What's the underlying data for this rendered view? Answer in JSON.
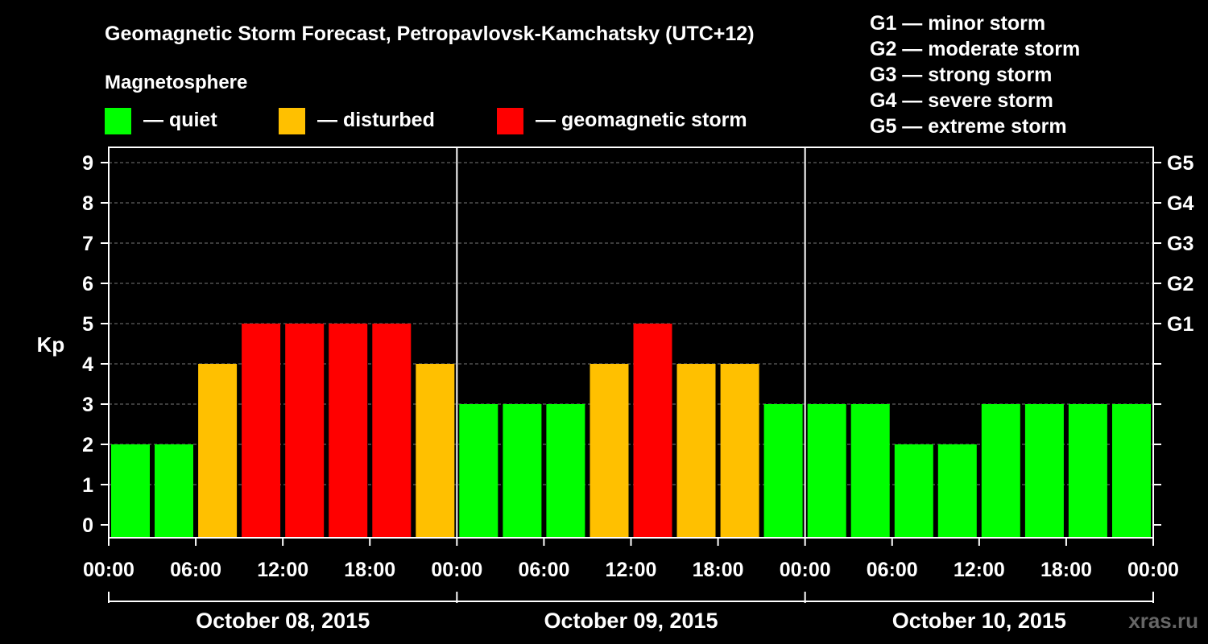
{
  "chart_data": {
    "type": "bar",
    "title": "Geomagnetic Storm Forecast, Petropavlovsk-Kamchatsky (UTC+12)",
    "legend_title": "Magnetosphere",
    "legend": [
      {
        "label": "— quiet",
        "color": "#00ff00"
      },
      {
        "label": "— disturbed",
        "color": "#ffc000"
      },
      {
        "label": "— geomagnetic storm",
        "color": "#ff0000"
      }
    ],
    "g_scale": [
      {
        "level": "G1",
        "label": "G1 — minor storm",
        "kp": 5
      },
      {
        "level": "G2",
        "label": "G2 — moderate storm",
        "kp": 6
      },
      {
        "level": "G3",
        "label": "G3 — strong storm",
        "kp": 7
      },
      {
        "level": "G4",
        "label": "G4 — severe storm",
        "kp": 8
      },
      {
        "level": "G5",
        "label": "G5 — extreme storm",
        "kp": 9
      }
    ],
    "ylabel": "Kp",
    "ylim": [
      0,
      9
    ],
    "yticks": [
      "0",
      "1",
      "2",
      "3",
      "4",
      "5",
      "6",
      "7",
      "8",
      "9"
    ],
    "grid": true,
    "days": [
      "October 08, 2015",
      "October 09, 2015",
      "October 10, 2015"
    ],
    "xtick_labels": [
      "00:00",
      "06:00",
      "12:00",
      "18:00",
      "00:00",
      "06:00",
      "12:00",
      "18:00",
      "00:00",
      "06:00",
      "12:00",
      "18:00",
      "00:00"
    ],
    "interval_hours": 3,
    "values": [
      2,
      2,
      4,
      5,
      5,
      5,
      5,
      4,
      3,
      3,
      3,
      4,
      5,
      4,
      4,
      3,
      3,
      3,
      2,
      2,
      3,
      3,
      3,
      3
    ],
    "colors": {
      "quiet": "#00ff00",
      "disturbed": "#ffc000",
      "storm": "#ff0000"
    }
  },
  "watermark": "xras.ru"
}
